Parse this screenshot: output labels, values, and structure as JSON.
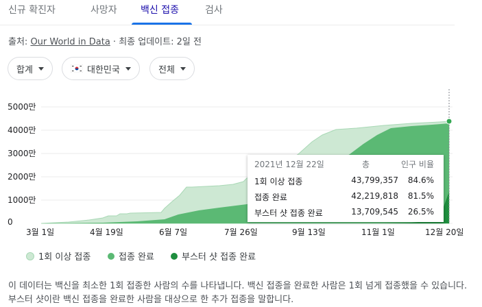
{
  "tabs": [
    {
      "label": "신규 확진자"
    },
    {
      "label": "사망자"
    },
    {
      "label": "백신 접종"
    },
    {
      "label": "검사"
    }
  ],
  "source": {
    "prefix": "출처: ",
    "link": "Our World in Data",
    "suffix": " · 최종 업데이트: 2일 전"
  },
  "filters": {
    "metric": "합계",
    "region": "대한민국",
    "period": "전체"
  },
  "y_axis": [
    "5000만",
    "4000만",
    "3000만",
    "2000만",
    "1000만",
    "0"
  ],
  "x_axis": [
    "3월 1일",
    "4월 19일",
    "6월 7일",
    "7월 26일",
    "9월 13일",
    "11월 1일",
    "12월 20일"
  ],
  "tooltip": {
    "date": "2021년 12월 22일",
    "col_total": "총",
    "col_ratio": "인구 비율",
    "rows": [
      {
        "label": "1회 이상 접종",
        "total": "43,799,357",
        "ratio": "84.6%"
      },
      {
        "label": "접종 완료",
        "total": "42,219,818",
        "ratio": "81.5%"
      },
      {
        "label": "부스터 샷 접종 완료",
        "total": "13,709,545",
        "ratio": "26.5%"
      }
    ]
  },
  "legend": [
    "1회 이상 접종",
    "접종 완료",
    "부스터 샷 접종 완료"
  ],
  "colors": {
    "one_dose": "#cde8d3",
    "full": "#5bb974",
    "booster": "#1e8e3e",
    "accent": "#1a73e8"
  },
  "description": "이 데이터는 백신을 최소한 1회 접종한 사람의 수를 나타냅니다. 백신 접종을 완료한 사람은 1회 넘게 접종했을 수 있습니다. 부스터 샷이란 백신 접종을 완료한 사람을 대상으로 한 추가 접종을 말합니다."
}
